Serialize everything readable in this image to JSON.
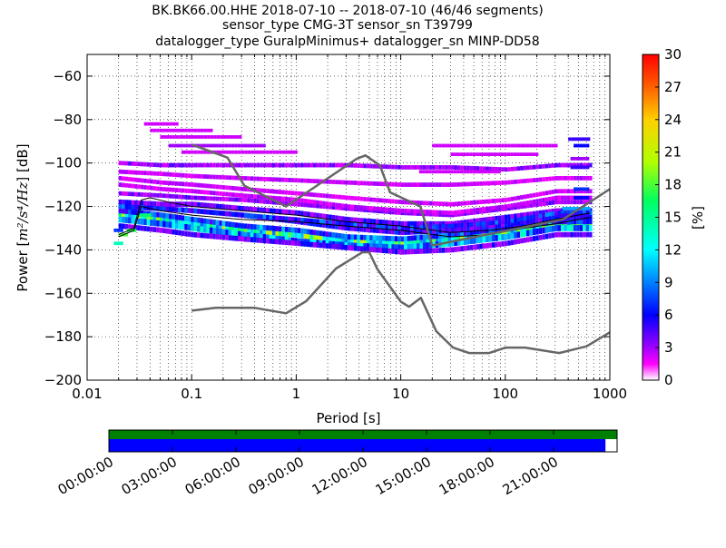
{
  "chart_data": [
    {
      "type": "heatmap",
      "title_lines": [
        "BK.BK66.00.HHE   2018-07-10 -- 2018-07-10  (46/46 segments)",
        "sensor_type CMG-3T sensor_sn T39799",
        "datalogger_type GuralpMinimus+ datalogger_sn MINP-DD58"
      ],
      "xlabel": "Period [s]",
      "ylabel_prefix": "Power [",
      "ylabel_unit": "m²/s⁴/Hz",
      "ylabel_suffix": "] [dB]",
      "x_scale": "log",
      "xlim": [
        0.01,
        1000
      ],
      "ylim": [
        -200,
        -50
      ],
      "x_ticks": [
        {
          "value": 0.01,
          "label": "0.01"
        },
        {
          "value": 0.1,
          "label": "0.1"
        },
        {
          "value": 1,
          "label": "1"
        },
        {
          "value": 10,
          "label": "10"
        },
        {
          "value": 100,
          "label": "100"
        },
        {
          "value": 1000,
          "label": "1000"
        }
      ],
      "y_ticks": [
        {
          "value": -60,
          "label": "−60"
        },
        {
          "value": -80,
          "label": "−80"
        },
        {
          "value": -100,
          "label": "−100"
        },
        {
          "value": -120,
          "label": "−120"
        },
        {
          "value": -140,
          "label": "−140"
        },
        {
          "value": -160,
          "label": "−160"
        },
        {
          "value": -180,
          "label": "−180"
        },
        {
          "value": -200,
          "label": "−200"
        }
      ],
      "grid": true,
      "colorbar": {
        "label": "[%]",
        "range": [
          0,
          30
        ],
        "ticks": [
          "0",
          "3",
          "6",
          "9",
          "12",
          "15",
          "18",
          "21",
          "24",
          "27",
          "30"
        ],
        "colormap": "pqlx"
      },
      "noise_models": [
        {
          "name": "NHNM",
          "points": [
            [
              0.1,
              -91.5
            ],
            [
              0.22,
              -97.5
            ],
            [
              0.32,
              -110.5
            ],
            [
              0.8,
              -120
            ],
            [
              3.8,
              -98
            ],
            [
              4.6,
              -96.5
            ],
            [
              6.3,
              -101
            ],
            [
              7.9,
              -113.5
            ],
            [
              15.4,
              -120
            ],
            [
              20,
              -138
            ],
            [
              354.8,
              -126
            ],
            [
              1000,
              -112
            ]
          ]
        },
        {
          "name": "NLNM",
          "points": [
            [
              0.1,
              -168
            ],
            [
              0.17,
              -166.7
            ],
            [
              0.4,
              -166.7
            ],
            [
              0.8,
              -169.2
            ],
            [
              1.24,
              -163.7
            ],
            [
              2.4,
              -148.6
            ],
            [
              4.3,
              -141.1
            ],
            [
              5,
              -141.1
            ],
            [
              6,
              -149
            ],
            [
              10,
              -163.8
            ],
            [
              12,
              -166.2
            ],
            [
              15.6,
              -162.1
            ],
            [
              21.9,
              -177.5
            ],
            [
              31.6,
              -185
            ],
            [
              45,
              -187.5
            ],
            [
              70,
              -187.5
            ],
            [
              101,
              -185
            ],
            [
              154,
              -185
            ],
            [
              328,
              -187.5
            ],
            [
              600,
              -184.4
            ],
            [
              1000,
              -178
            ]
          ]
        }
      ],
      "mean_psd": [
        [
          0.02,
          -133
        ],
        [
          0.028,
          -130
        ],
        [
          0.033,
          -117
        ],
        [
          0.04,
          -116
        ],
        [
          0.06,
          -118
        ],
        [
          0.1,
          -120
        ],
        [
          0.3,
          -122
        ],
        [
          1,
          -124
        ],
        [
          3,
          -127
        ],
        [
          10,
          -129
        ],
        [
          30,
          -132
        ],
        [
          70,
          -131
        ],
        [
          150,
          -129
        ],
        [
          300,
          -126
        ],
        [
          500,
          -124
        ],
        [
          650,
          -123
        ]
      ],
      "mode_psd": [
        [
          0.02,
          -134
        ],
        [
          0.028,
          -131
        ],
        [
          0.033,
          -120
        ],
        [
          0.05,
          -122
        ],
        [
          0.1,
          -124
        ],
        [
          0.3,
          -126
        ],
        [
          1,
          -127
        ],
        [
          3,
          -129
        ],
        [
          10,
          -131
        ],
        [
          30,
          -134
        ],
        [
          70,
          -133
        ],
        [
          150,
          -130
        ],
        [
          300,
          -128
        ],
        [
          500,
          -126
        ],
        [
          650,
          -125
        ]
      ],
      "bands": [
        {
          "yc": [
            -124,
            -126,
            -128,
            -131,
            -133,
            -136,
            -137,
            -135,
            -132,
            -128
          ],
          "pct": 14,
          "hw": 1.4
        },
        {
          "yc": [
            -126,
            -128,
            -130,
            -133,
            -136,
            -138,
            -139,
            -137,
            -134,
            -130
          ],
          "pct": 9,
          "hw": 1.4
        },
        {
          "yc": [
            -122,
            -124,
            -126,
            -129,
            -131,
            -134,
            -135,
            -133,
            -130,
            -127
          ],
          "pct": 7,
          "hw": 1.2
        },
        {
          "yc": [
            -120,
            -121,
            -122,
            -124,
            -127,
            -130,
            -132,
            -131,
            -128,
            -125
          ],
          "pct": 5,
          "hw": 1.2
        },
        {
          "yc": [
            -118,
            -119,
            -119,
            -121,
            -123,
            -126,
            -128,
            -128,
            -125,
            -122
          ],
          "pct": 4,
          "hw": 1.2
        },
        {
          "yc": [
            -129,
            -131,
            -133,
            -135,
            -137,
            -139,
            -141,
            -140,
            -137,
            -133
          ],
          "pct": 4,
          "hw": 1.2
        },
        {
          "yc": [
            -114,
            -115,
            -116,
            -117,
            -119,
            -121,
            -123,
            -124,
            -121,
            -118
          ],
          "pct": 3,
          "hw": 1
        },
        {
          "yc": [
            -110,
            -112,
            -113,
            -115,
            -117,
            -120,
            -122,
            -123,
            -120,
            -116
          ],
          "pct": 2,
          "hw": 1
        },
        {
          "yc": [
            -107,
            -109,
            -110,
            -112,
            -114,
            -116,
            -118,
            -119,
            -117,
            -113
          ],
          "pct": 2,
          "hw": 1
        },
        {
          "yc": [
            -100,
            -101,
            -101,
            -101,
            -101,
            -101,
            -102,
            -102,
            -103,
            -101
          ],
          "pct": 3,
          "hw": 1
        },
        {
          "yc": [
            -104,
            -105,
            -106,
            -107,
            -108,
            -109,
            -110,
            -110,
            -109,
            -107
          ],
          "pct": 2,
          "hw": 1
        },
        {
          "yc": [
            -120,
            -121,
            -122,
            -124,
            -126,
            -128,
            -130,
            -129,
            -127,
            -123
          ],
          "pct": 6,
          "hw": 1
        }
      ],
      "extra_cells": [
        {
          "p0": 0.035,
          "p1": 0.07,
          "yc": -82,
          "pct": 2
        },
        {
          "p0": 0.04,
          "p1": 0.15,
          "yc": -85,
          "pct": 2
        },
        {
          "p0": 0.05,
          "p1": 0.3,
          "yc": -88,
          "pct": 2
        },
        {
          "p0": 0.06,
          "p1": 0.5,
          "yc": -92,
          "pct": 3
        },
        {
          "p0": 0.08,
          "p1": 1,
          "yc": -95,
          "pct": 2
        },
        {
          "p0": 20,
          "p1": 300,
          "yc": -92,
          "pct": 2
        },
        {
          "p0": 30,
          "p1": 200,
          "yc": -96,
          "pct": 2
        },
        {
          "p0": 15,
          "p1": 90,
          "yc": -104,
          "pct": 2
        },
        {
          "p0": 400,
          "p1": 620,
          "yc": -89,
          "pct": 5
        },
        {
          "p0": 450,
          "p1": 620,
          "yc": -92,
          "pct": 6
        },
        {
          "p0": 420,
          "p1": 620,
          "yc": -98,
          "pct": 3
        },
        {
          "p0": 420,
          "p1": 620,
          "yc": -102,
          "pct": 5
        },
        {
          "p0": 450,
          "p1": 620,
          "yc": -112,
          "pct": 7
        },
        {
          "p0": 450,
          "p1": 620,
          "yc": -116,
          "pct": 6
        },
        {
          "p0": 350,
          "p1": 620,
          "yc": -121,
          "pct": 10
        },
        {
          "p0": 300,
          "p1": 620,
          "yc": -124,
          "pct": 5
        },
        {
          "p0": 0.018,
          "p1": 0.021,
          "yc": -137,
          "pct": 14
        },
        {
          "p0": 0.02,
          "p1": 0.024,
          "yc": -133,
          "pct": 18
        },
        {
          "p0": 0.024,
          "p1": 0.028,
          "yc": -131,
          "pct": 17
        },
        {
          "p0": 0.018,
          "p1": 0.021,
          "yc": -131,
          "pct": 7
        },
        {
          "p0": 0.031,
          "p1": 0.04,
          "yc": -124,
          "pct": 16
        }
      ]
    },
    {
      "type": "bar",
      "name": "data availability timeline",
      "xlim_hours": [
        0,
        24
      ],
      "x_ticks": [
        {
          "value": 0,
          "label": "00:00:00"
        },
        {
          "value": 3,
          "label": "03:00:00"
        },
        {
          "value": 6,
          "label": "06:00:00"
        },
        {
          "value": 9,
          "label": "09:00:00"
        },
        {
          "value": 12,
          "label": "12:00:00"
        },
        {
          "value": 15,
          "label": "15:00:00"
        },
        {
          "value": 18,
          "label": "18:00:00"
        },
        {
          "value": 21,
          "label": "21:00:00"
        }
      ],
      "rows": [
        {
          "kind": "available data",
          "color": "#008000",
          "spans": [
            [
              0,
              24
            ]
          ]
        },
        {
          "kind": "processed segments",
          "color": "#0000ff",
          "spans": [
            [
              0,
              23.45
            ]
          ]
        }
      ]
    }
  ],
  "colors": {
    "noise_model": "#666666",
    "mean_line": "#000000",
    "mode_line": "#000000"
  }
}
